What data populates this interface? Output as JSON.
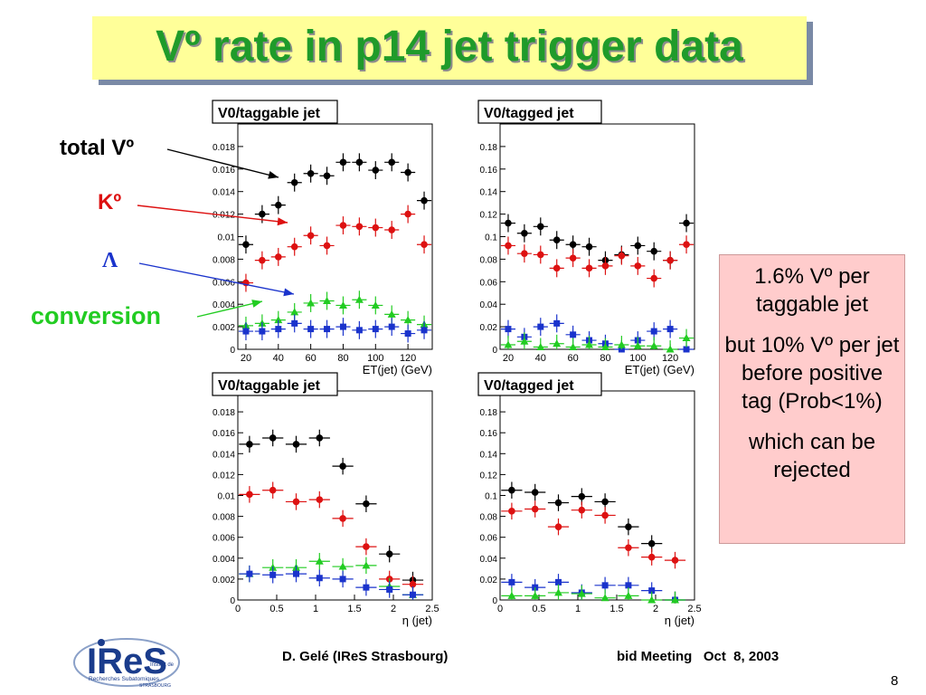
{
  "slide": {
    "title": "Vº rate in p14 jet trigger data",
    "page_number": "8",
    "footer_left": "D. Gelé (IReS Strasbourg)",
    "footer_right": "bid Meeting   Oct  8, 2003"
  },
  "annotations": {
    "total": "total Vº",
    "k0": "Kº",
    "lambda": "Λ",
    "conversion": "conversion"
  },
  "info_box": {
    "paragraphs": [
      "1.6% Vº per taggable jet",
      "but 10% Vº per jet before positive tag (Prob<1%)",
      "which can be rejected"
    ]
  },
  "logo": {
    "name": "IReS",
    "text_line1": "Institut de",
    "text_line2": "Recherches Subatomiques",
    "text_line3": "STRASBOURG"
  },
  "colors": {
    "title": "#1f9b2a",
    "title_box": "#ffff99",
    "total": "#000000",
    "k0": "#dd1111",
    "lambda": "#1a33cc",
    "conversion": "#22cc22",
    "info_box": "#ffcccc"
  },
  "chart_data": [
    {
      "type": "scatter",
      "title": "V0/taggable jet",
      "xlabel": "ET(jet) (GeV)",
      "xlim": [
        15,
        135
      ],
      "ylim": [
        0,
        0.02
      ],
      "xticks": [
        20,
        40,
        60,
        80,
        100,
        120
      ],
      "yticks": [
        0,
        0.002,
        0.004,
        0.006,
        0.008,
        0.01,
        0.012,
        0.014,
        0.016,
        0.018
      ],
      "ytick_labels": [
        "0",
        "0.002",
        "0.004",
        "0.006",
        "0.008",
        "0.01",
        "0.012",
        "0.014",
        "0.016",
        "0.018"
      ],
      "x": [
        20,
        30,
        40,
        50,
        60,
        70,
        80,
        90,
        100,
        110,
        120,
        130
      ],
      "series": [
        {
          "name": "total Vº",
          "color": "#000000",
          "marker": "circle",
          "values": [
            0.0093,
            0.012,
            0.0128,
            0.0148,
            0.0156,
            0.0154,
            0.0166,
            0.0166,
            0.0159,
            0.0166,
            0.0157,
            0.0132
          ]
        },
        {
          "name": "Kº",
          "color": "#dd1111",
          "marker": "circle",
          "values": [
            0.0059,
            0.0079,
            0.0082,
            0.0091,
            0.0101,
            0.0092,
            0.011,
            0.0109,
            0.0108,
            0.0106,
            0.012,
            0.0093
          ]
        },
        {
          "name": "conversion",
          "color": "#22cc22",
          "marker": "triangle",
          "values": [
            0.0021,
            0.0023,
            0.0026,
            0.0033,
            0.0041,
            0.0043,
            0.0039,
            0.0044,
            0.0039,
            0.0031,
            0.0026,
            0.0022
          ]
        },
        {
          "name": "Λ",
          "color": "#1a33cc",
          "marker": "square",
          "values": [
            0.0016,
            0.0016,
            0.0018,
            0.0023,
            0.0018,
            0.0018,
            0.002,
            0.0017,
            0.0018,
            0.002,
            0.0014,
            0.0017
          ]
        }
      ]
    },
    {
      "type": "scatter",
      "title": "V0/tagged jet",
      "xlabel": "ET(jet) (GeV)",
      "xlim": [
        15,
        135
      ],
      "ylim": [
        0,
        0.2
      ],
      "xticks": [
        20,
        40,
        60,
        80,
        100,
        120
      ],
      "yticks": [
        0,
        0.02,
        0.04,
        0.06,
        0.08,
        0.1,
        0.12,
        0.14,
        0.16,
        0.18
      ],
      "ytick_labels": [
        "0",
        "0.02",
        "0.04",
        "0.06",
        "0.08",
        "0.1",
        "0.12",
        "0.14",
        "0.16",
        "0.18"
      ],
      "x": [
        20,
        30,
        40,
        50,
        60,
        70,
        80,
        90,
        100,
        110,
        120,
        130
      ],
      "series": [
        {
          "name": "total Vº",
          "color": "#000000",
          "marker": "circle",
          "values": [
            0.112,
            0.103,
            0.109,
            0.097,
            0.093,
            0.091,
            0.079,
            0.084,
            0.092,
            0.087,
            0.079,
            0.112
          ]
        },
        {
          "name": "Kº",
          "color": "#dd1111",
          "marker": "circle",
          "values": [
            0.092,
            0.085,
            0.084,
            0.072,
            0.081,
            0.072,
            0.074,
            0.083,
            0.074,
            0.063,
            0.079,
            0.093
          ]
        },
        {
          "name": "Λ",
          "color": "#1a33cc",
          "marker": "square",
          "values": [
            0.018,
            0.011,
            0.02,
            0.023,
            0.013,
            0.008,
            0.005,
            0.0,
            0.008,
            0.016,
            0.018,
            0.0
          ]
        },
        {
          "name": "conversion",
          "color": "#22cc22",
          "marker": "triangle",
          "values": [
            0.004,
            0.007,
            0.002,
            0.005,
            0.002,
            0.004,
            0.002,
            0.004,
            0.003,
            0.003,
            0.0,
            0.01
          ]
        }
      ]
    },
    {
      "type": "scatter",
      "title": "V0/taggable jet",
      "xlabel": "η (jet)",
      "xlim": [
        0,
        2.5
      ],
      "ylim": [
        0,
        0.02
      ],
      "xticks": [
        0,
        0.5,
        1,
        1.5,
        2,
        2.5
      ],
      "yticks": [
        0,
        0.002,
        0.004,
        0.006,
        0.008,
        0.01,
        0.012,
        0.014,
        0.016,
        0.018
      ],
      "ytick_labels": [
        "0",
        "0.002",
        "0.004",
        "0.006",
        "0.008",
        "0.01",
        "0.012",
        "0.014",
        "0.016",
        "0.018"
      ],
      "x": [
        0.15,
        0.45,
        0.75,
        1.05,
        1.35,
        1.65,
        1.95,
        2.25
      ],
      "series": [
        {
          "name": "total Vº",
          "color": "#000000",
          "marker": "circle",
          "values": [
            0.0149,
            0.0155,
            0.0149,
            0.0155,
            0.0128,
            0.0092,
            0.0044,
            0.0019
          ]
        },
        {
          "name": "Kº",
          "color": "#dd1111",
          "marker": "circle",
          "values": [
            0.0101,
            0.0105,
            0.0094,
            0.0096,
            0.0078,
            0.0051,
            0.002,
            0.0015
          ]
        },
        {
          "name": "conversion",
          "color": "#22cc22",
          "marker": "triangle",
          "values": [
            0.0025,
            0.0031,
            0.0031,
            0.0037,
            0.0032,
            0.0033,
            0.0013,
            0.0005
          ]
        },
        {
          "name": "Λ",
          "color": "#1a33cc",
          "marker": "square",
          "values": [
            0.0025,
            0.0024,
            0.0025,
            0.0021,
            0.002,
            0.0012,
            0.001,
            0.0005
          ]
        }
      ]
    },
    {
      "type": "scatter",
      "title": "V0/tagged jet",
      "xlabel": "η (jet)",
      "xlim": [
        0,
        2.5
      ],
      "ylim": [
        0,
        0.2
      ],
      "xticks": [
        0,
        0.5,
        1,
        1.5,
        2,
        2.5
      ],
      "yticks": [
        0,
        0.02,
        0.04,
        0.06,
        0.08,
        0.1,
        0.12,
        0.14,
        0.16,
        0.18
      ],
      "ytick_labels": [
        "0",
        "0.02",
        "0.04",
        "0.06",
        "0.08",
        "0.1",
        "0.12",
        "0.14",
        "0.16",
        "0.18"
      ],
      "x": [
        0.15,
        0.45,
        0.75,
        1.05,
        1.35,
        1.65,
        1.95,
        2.25
      ],
      "series": [
        {
          "name": "total Vº",
          "color": "#000000",
          "marker": "circle",
          "values": [
            0.105,
            0.103,
            0.093,
            0.099,
            0.094,
            0.07,
            0.054,
            0.0
          ]
        },
        {
          "name": "Kº",
          "color": "#dd1111",
          "marker": "circle",
          "values": [
            0.085,
            0.087,
            0.07,
            0.086,
            0.081,
            0.05,
            0.041,
            0.038
          ]
        },
        {
          "name": "Λ",
          "color": "#1a33cc",
          "marker": "square",
          "values": [
            0.017,
            0.012,
            0.017,
            0.007,
            0.014,
            0.014,
            0.009,
            0.0
          ]
        },
        {
          "name": "conversion",
          "color": "#22cc22",
          "marker": "triangle",
          "values": [
            0.004,
            0.004,
            0.007,
            0.006,
            0.002,
            0.004,
            0.0,
            0.0
          ]
        }
      ]
    }
  ]
}
